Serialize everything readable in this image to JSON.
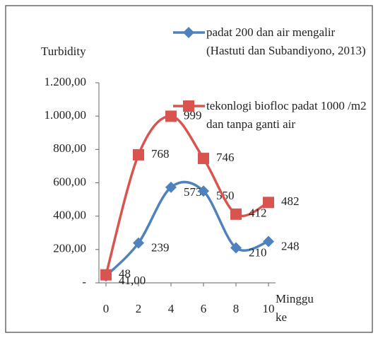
{
  "chart_data": {
    "type": "line",
    "y_label": "Turbidity",
    "x_label": "Minggu ke",
    "x": [
      0,
      2,
      4,
      6,
      8,
      10
    ],
    "xlim": [
      0,
      10
    ],
    "xticks": [
      0,
      2,
      4,
      6,
      8,
      10
    ],
    "ylim": [
      0,
      1200
    ],
    "yticks": [
      {
        "value": 0,
        "label": "-"
      },
      {
        "value": 200,
        "label": "200,00"
      },
      {
        "value": 400,
        "label": "400,00"
      },
      {
        "value": 600,
        "label": "600,00"
      },
      {
        "value": 800,
        "label": "800,00"
      },
      {
        "value": 1000,
        "label": "1.000,00"
      },
      {
        "value": 1200,
        "label": "1.200,00"
      }
    ],
    "smooth": true,
    "series": [
      {
        "name": "padat 200 dan air mengalir (Hastuti dan Subandiyono, 2013)",
        "color": "#4f81bd",
        "marker": "diamond",
        "values": [
          41,
          239,
          573,
          550,
          210,
          248
        ],
        "value_labels": [
          "41,00",
          "239",
          "573",
          "550",
          "210",
          "248"
        ]
      },
      {
        "name": "tekonlogi biofloc padat 1000 /m2 dan tanpa ganti air",
        "color": "#d9534f",
        "marker": "square",
        "values": [
          48,
          768,
          999,
          746,
          412,
          482
        ]
      }
    ]
  }
}
